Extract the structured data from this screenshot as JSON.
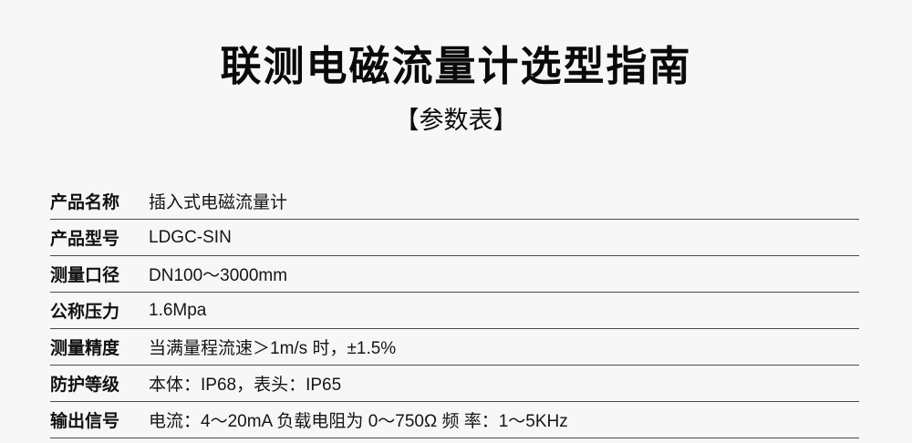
{
  "page": {
    "title": "联测电磁流量计选型指南",
    "subtitle": "【参数表】"
  },
  "table": {
    "rows": [
      {
        "label": "产品名称",
        "value": "插入式电磁流量计"
      },
      {
        "label": "产品型号",
        "value": "LDGC-SIN"
      },
      {
        "label": "测量口径",
        "value": "DN100～3000mm"
      },
      {
        "label": "公称压力",
        "value": "1.6Mpa"
      },
      {
        "label": "测量精度",
        "value": "当满量程流速＞1m/s 时，±1.5%"
      },
      {
        "label": "防护等级",
        "value": "本体：IP68，表头：IP65"
      },
      {
        "label": "输出信号",
        "value": "电流：4～20mA 负载电阻为 0～750Ω 频 率：1～5KHz"
      }
    ]
  },
  "colors": {
    "background": "#f7f7f7",
    "title_text": "#0a0a0a",
    "body_text": "#151515",
    "divider": "#4a4a4a"
  }
}
